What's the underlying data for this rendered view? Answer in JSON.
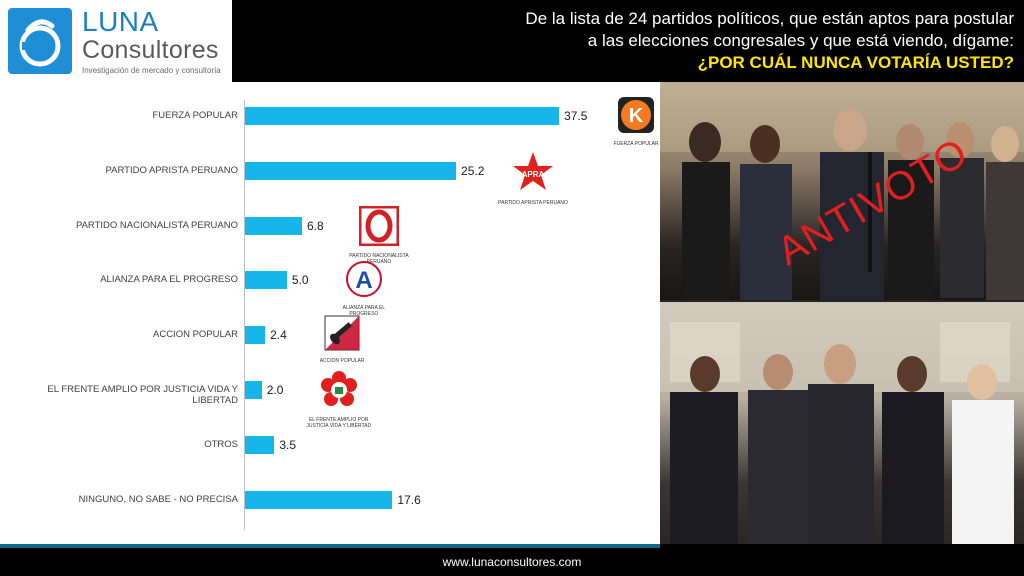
{
  "header": {
    "logo_name": "LUNA",
    "logo_name2": "Consultores",
    "logo_tag": "Investigación de mercado y consultoría",
    "line1": "De la lista de 24 partidos políticos, que están aptos para postular",
    "line2": "a las elecciones congresales y que está viendo, dígame:",
    "question": "¿POR CUÁL NUNCA VOTARÍA USTED?"
  },
  "chart_data": {
    "type": "bar",
    "orientation": "horizontal",
    "title": "",
    "xlabel": "",
    "ylabel": "",
    "xlim": [
      0,
      40
    ],
    "grid": false,
    "categories": [
      "FUERZA POPULAR",
      "PARTIDO APRISTA PERUANO",
      "PARTIDO NACIONALISTA PERUANO",
      "ALIANZA PARA EL PROGRESO",
      "ACCION POPULAR",
      "EL FRENTE AMPLIO POR JUSTICIA VIDA Y LIBERTAD",
      "OTROS",
      "NINGUNO, NO SABE - NO PRECISA"
    ],
    "values": [
      37.5,
      25.2,
      6.8,
      5.0,
      2.4,
      2.0,
      3.5,
      17.6
    ],
    "value_labels": [
      "37.5",
      "25.2",
      "6.8",
      "5.0",
      "2.4",
      "2.0",
      "3.5",
      "17.6"
    ],
    "bar_color": "#17b6ea"
  },
  "party_logos": [
    {
      "icon": "fuerza-popular-logo",
      "letter": "K",
      "caption": "FUERZA POPULAR",
      "color": "#f47b20"
    },
    {
      "icon": "apra-logo",
      "letter": "APRA",
      "caption": "PARTIDO APRISTA PERUANO",
      "color": "#e11f1f"
    },
    {
      "icon": "nacionalista-logo",
      "letter": "O",
      "caption": "PARTIDO NACIONALISTA PERUANO",
      "color": "#d32027"
    },
    {
      "icon": "app-logo",
      "letter": "A",
      "caption": "ALIANZA PARA EL PROGRESO",
      "color": "#1f4fa3"
    },
    {
      "icon": "accion-popular-logo",
      "letter": "",
      "caption": "ACCION POPULAR",
      "color": "#c8102e"
    },
    {
      "icon": "frente-amplio-logo",
      "letter": "",
      "caption": "EL FRENTE AMPLIO POR JUSTICIA VIDA Y LIBERTAD",
      "color": "#e11f1f"
    }
  ],
  "photo": {
    "stamp_text": "ANTIVOTO",
    "stamp_color": "#e11f1f"
  },
  "footer": {
    "website": "www.lunaconsultores.com"
  }
}
